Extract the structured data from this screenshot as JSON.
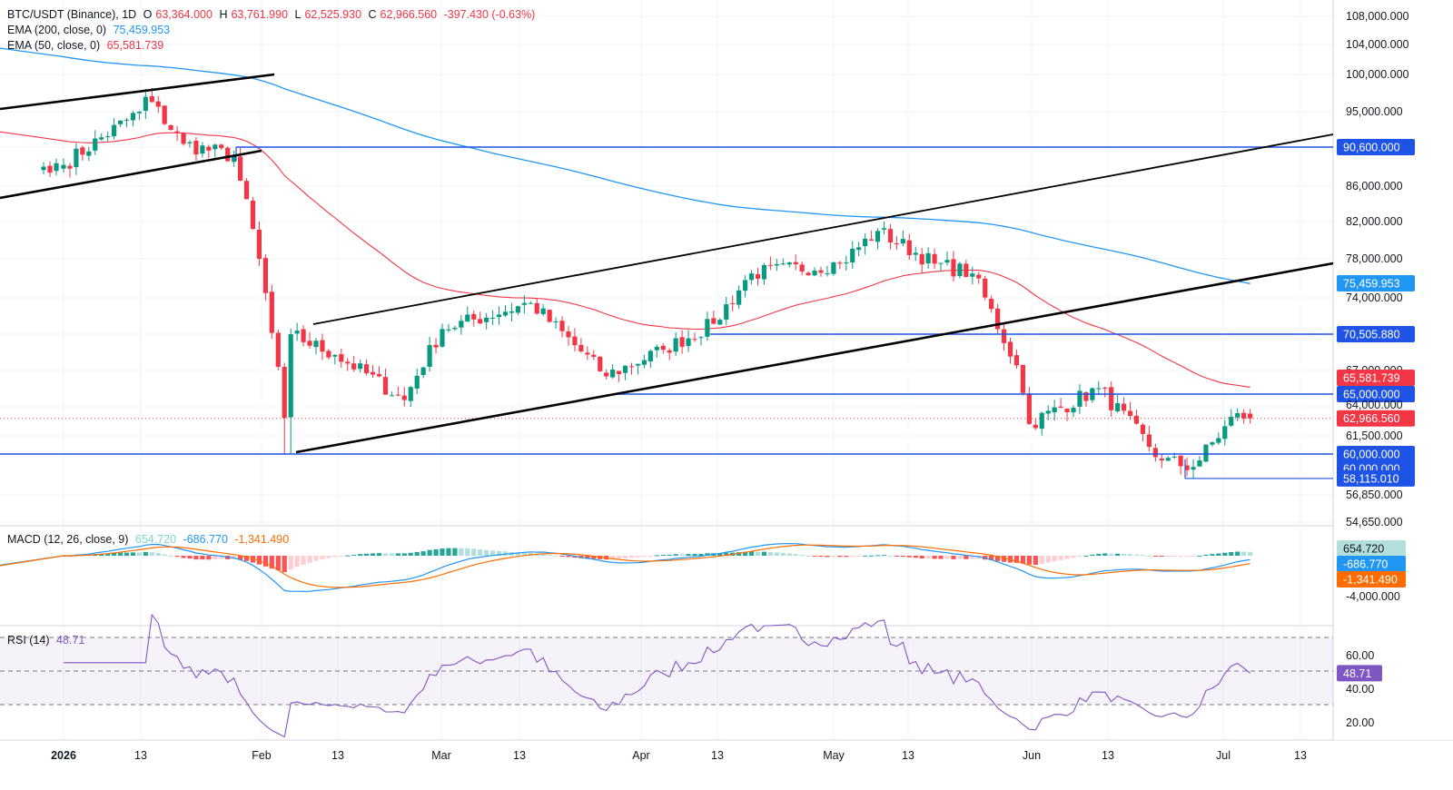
{
  "header": {
    "symbol": "BTC/USDT (Binance), 1D",
    "open_label": "O",
    "open": "63,364.000",
    "high_label": "H",
    "high": "63,761.990",
    "low_label": "L",
    "low": "62,525.930",
    "close_label": "C",
    "close": "62,966.560",
    "change": "-397.430 (-0.63%)",
    "ema200_label": "EMA (200, close, 0)",
    "ema200_value": "75,459.953",
    "ema50_label": "EMA (50, close, 0)",
    "ema50_value": "65,581.739",
    "macd_label": "MACD (12, 26, close, 9)",
    "macd_hist": "654.720",
    "macd_line": "-686.770",
    "macd_signal": "-1,341.490",
    "rsi_label": "RSI (14)",
    "rsi_value": "48.71"
  },
  "colors": {
    "up": "#089981",
    "down": "#f23645",
    "ema200": "#2196f3",
    "ema50": "#f23645",
    "level": "#1e53e5",
    "trend": "#000000",
    "macd": "#2196f3",
    "signal": "#ff6d00",
    "rsi": "#7e57c2"
  },
  "chart_data": {
    "type": "candlestick",
    "symbol": "BTC/USDT",
    "timeframe": "1D",
    "x_axis_labels": [
      "2026",
      "13",
      "Feb",
      "13",
      "Mar",
      "13",
      "Apr",
      "13",
      "May",
      "13",
      "Jun",
      "13",
      "Jul",
      "13"
    ],
    "y_axis_labels": [
      "108,000.000",
      "104,000.000",
      "100,000.000",
      "95,000.000",
      "86,000.000",
      "82,000.000",
      "78,000.000",
      "74,000.000",
      "67,000.000",
      "61,500.000",
      "56,850.000",
      "54,650.000"
    ],
    "price_tags": [
      {
        "label": "90,600.000",
        "value": 90600,
        "type": "level"
      },
      {
        "label": "75,459.953",
        "value": 75460,
        "type": "ema200"
      },
      {
        "label": "70,505.880",
        "value": 70506,
        "type": "level"
      },
      {
        "label": "65,581.739",
        "value": 65582,
        "type": "ema50"
      },
      {
        "label": "65,000.000",
        "value": 65000,
        "type": "level"
      },
      {
        "label": "64,000.000",
        "value": 64000,
        "type": "partial"
      },
      {
        "label": "62,966.560",
        "value": 62966.56,
        "type": "last"
      },
      {
        "label": "60,000.000",
        "value": 60000,
        "type": "level"
      },
      {
        "label": "60,000.000",
        "value": 60000,
        "type": "level2"
      },
      {
        "label": "58,115.010",
        "value": 58115,
        "type": "level"
      }
    ],
    "ohlc_keypoints": [
      {
        "date": "2026-01-01",
        "close": 88500
      },
      {
        "date": "2026-01-13",
        "close": 95000
      },
      {
        "date": "2026-01-14",
        "close": 97000
      },
      {
        "date": "2026-01-20",
        "close": 91000
      },
      {
        "date": "2026-01-28",
        "close": 89500
      },
      {
        "date": "2026-02-01",
        "close": 78000
      },
      {
        "date": "2026-02-05",
        "close": 63000
      },
      {
        "date": "2026-02-06",
        "close": 70500
      },
      {
        "date": "2026-02-13",
        "close": 68500
      },
      {
        "date": "2026-02-24",
        "close": 64500
      },
      {
        "date": "2026-03-02",
        "close": 71000
      },
      {
        "date": "2026-03-16",
        "close": 73500
      },
      {
        "date": "2026-03-28",
        "close": 66500
      },
      {
        "date": "2026-04-06",
        "close": 69000
      },
      {
        "date": "2026-04-14",
        "close": 71500
      },
      {
        "date": "2026-04-20",
        "close": 76500
      },
      {
        "date": "2026-05-04",
        "close": 77500
      },
      {
        "date": "2026-05-10",
        "close": 81000
      },
      {
        "date": "2026-05-19",
        "close": 77500
      },
      {
        "date": "2026-05-25",
        "close": 76500
      },
      {
        "date": "2026-06-01",
        "close": 67500
      },
      {
        "date": "2026-06-03",
        "close": 62500
      },
      {
        "date": "2026-06-14",
        "close": 65500
      },
      {
        "date": "2026-06-24",
        "close": 59500
      },
      {
        "date": "2026-06-29",
        "close": 59000
      },
      {
        "date": "2026-07-06",
        "close": 63400
      },
      {
        "date": "2026-07-08",
        "close": 62966.56
      }
    ],
    "horizontal_levels": [
      90600,
      70505.88,
      65000,
      60000,
      58115.01
    ],
    "macd": {
      "hist": 654.72,
      "macd": -686.77,
      "signal": -1341.49,
      "axis_label": "-4,000.000"
    },
    "rsi": {
      "value": 48.71,
      "axis_labels": [
        "60.00",
        "40.00",
        "20.00"
      ],
      "upper_band": 70,
      "lower_band": 30
    }
  }
}
